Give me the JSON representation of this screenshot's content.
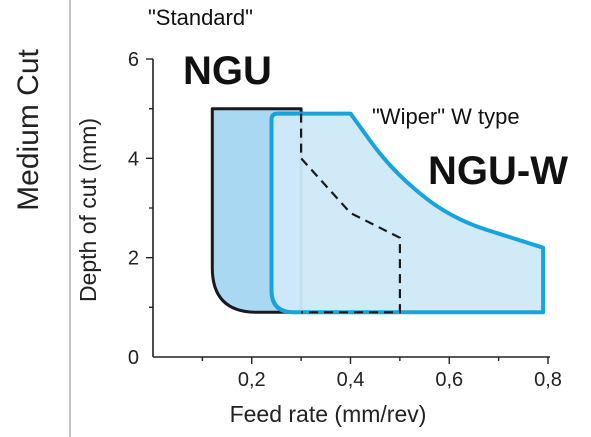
{
  "side_title": "Medium Cut",
  "chart_data": {
    "type": "area",
    "xlabel": "Feed rate (mm/rev)",
    "ylabel": "Depth of cut (mm)",
    "xlim": [
      0,
      0.8
    ],
    "ylim": [
      0,
      6
    ],
    "x_ticks": [
      "0,2",
      "0,4",
      "0,6",
      "0,8"
    ],
    "y_ticks": [
      "0",
      "2",
      "4",
      "6"
    ],
    "grid": false,
    "series": [
      {
        "name": "NGU",
        "subtitle": "\"Standard\"",
        "stroke": "#1a1a1a",
        "fill": "#a9d8f2",
        "points": [
          [
            0.12,
            5.0
          ],
          [
            0.3,
            5.0
          ],
          [
            0.3,
            0.9
          ],
          [
            0.12,
            0.9
          ]
        ]
      },
      {
        "name": "NGU-W",
        "subtitle": "\"Wiper\" W  type",
        "stroke": "#19a3dc",
        "fill": "#cfe9f8",
        "points": [
          [
            0.24,
            4.9
          ],
          [
            0.4,
            4.9
          ],
          [
            0.48,
            3.8
          ],
          [
            0.6,
            2.8
          ],
          [
            0.79,
            2.2
          ],
          [
            0.79,
            0.9
          ],
          [
            0.24,
            0.9
          ]
        ]
      }
    ],
    "boundary_dashed": {
      "points": [
        [
          0.3,
          4.9
        ],
        [
          0.3,
          4.0
        ],
        [
          0.4,
          2.9
        ],
        [
          0.5,
          2.4
        ],
        [
          0.5,
          0.9
        ],
        [
          0.3,
          0.9
        ]
      ]
    }
  }
}
